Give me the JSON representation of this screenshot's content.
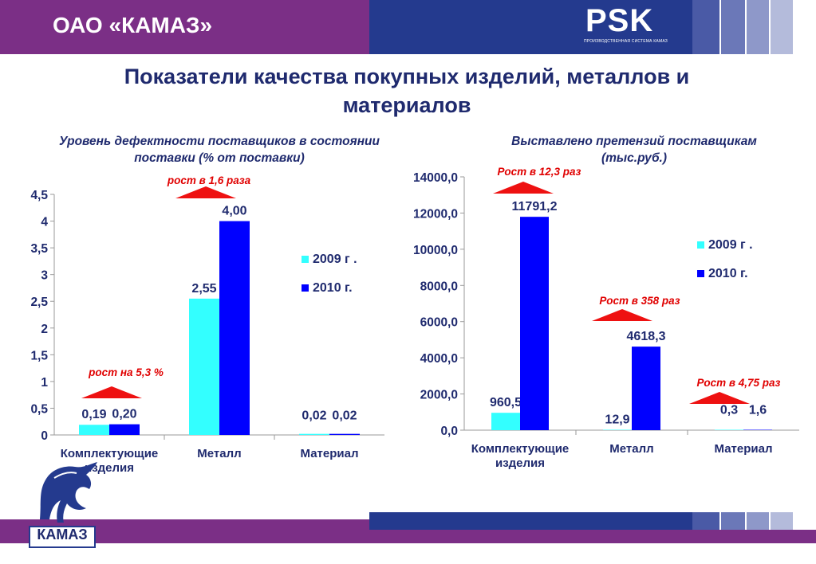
{
  "header": {
    "company": "ОАО «КАМАЗ»",
    "psk_logo": "PSK",
    "psk_tagline": "ПРОИЗВОДСТВЕННАЯ СИСТЕМА КАМАЗ"
  },
  "page": {
    "title": "Показатели качества покупных изделий, металлов и материалов"
  },
  "footer": {
    "logo_text": "КАМАЗ",
    "logo_icon": "horse-logo-icon"
  },
  "colors": {
    "purple": "#7b2f86",
    "navy": "#243a8e",
    "series_2009": "#33ffff",
    "series_2010": "#0000ff",
    "annotation_red": "#e00000",
    "arrow_red": "#ee1111"
  },
  "chart_data": [
    {
      "type": "bar",
      "title": "Уровень дефектности поставщиков в состоянии поставки (% от поставки)",
      "categories": [
        "Комплектующие изделия",
        "Металл",
        "Материал"
      ],
      "series": [
        {
          "name": "2009 г .",
          "values": [
            0.19,
            2.55,
            0.02
          ],
          "labels": [
            "0,19",
            "2,55",
            "0,02"
          ]
        },
        {
          "name": "2010 г.",
          "values": [
            0.2,
            4.0,
            0.02
          ],
          "labels": [
            "0,20",
            "4,00",
            "0,02"
          ]
        }
      ],
      "ylim": [
        0,
        4.5
      ],
      "yticks": [
        0,
        0.5,
        1,
        1.5,
        2,
        2.5,
        3,
        3.5,
        4,
        4.5
      ],
      "ytick_labels": [
        "0",
        "0,5",
        "1",
        "1,5",
        "2",
        "2,5",
        "3",
        "3,5",
        "4",
        "4,5"
      ],
      "annotations": [
        "рост на 5,3 %",
        "рост в 1,6 раза",
        ""
      ],
      "grid": false,
      "legend": "right"
    },
    {
      "type": "bar",
      "title": "Выставлено претензий поставщикам (тыс.руб.)",
      "categories": [
        "Комплектующие изделия",
        "Металл",
        "Материал"
      ],
      "series": [
        {
          "name": "2009 г .",
          "values": [
            960.5,
            12.9,
            0.3
          ],
          "labels": [
            "960,5",
            "12,9",
            "0,3"
          ]
        },
        {
          "name": "2010 г.",
          "values": [
            11791.2,
            4618.3,
            1.6
          ],
          "labels": [
            "11791,2",
            "4618,3",
            "1,6"
          ]
        }
      ],
      "ylim": [
        0,
        14000
      ],
      "yticks": [
        0,
        2000,
        4000,
        6000,
        8000,
        10000,
        12000,
        14000
      ],
      "ytick_labels": [
        "0,0",
        "2000,0",
        "4000,0",
        "6000,0",
        "8000,0",
        "10000,0",
        "12000,0",
        "14000,0"
      ],
      "annotations": [
        "Рост в 12,3 раз",
        "Рост в 358 раз",
        "Рост в 4,75 раз"
      ],
      "grid": false,
      "legend": "right"
    }
  ]
}
